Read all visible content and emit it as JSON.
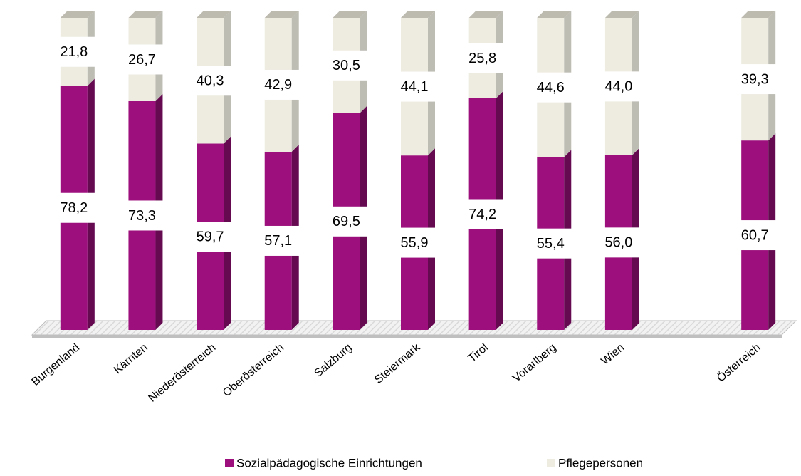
{
  "chart_data": {
    "type": "stacked-bar",
    "categories": [
      "Burgenland",
      "Kärnten",
      "Niederösterreich",
      "Oberösterreich",
      "Salzburg",
      "Steiermark",
      "Tirol",
      "Vorarlberg",
      "Wien",
      null,
      "Österreich"
    ],
    "series": [
      {
        "name": "Sozialpädagogische Einrichtungen",
        "color": "#9c0f7c",
        "values": [
          78.2,
          73.3,
          59.7,
          57.1,
          69.5,
          55.9,
          74.2,
          55.4,
          56.0,
          null,
          60.7
        ],
        "value_labels": [
          "78,2",
          "73,3",
          "59,7",
          "57,1",
          "69,5",
          "55,9",
          "74,2",
          "55,4",
          "56,0",
          null,
          "60,7"
        ]
      },
      {
        "name": "Pflegepersonen",
        "color": "#eeece1",
        "values": [
          21.8,
          26.7,
          40.3,
          42.9,
          30.5,
          44.1,
          25.8,
          44.6,
          44.0,
          null,
          39.3
        ],
        "value_labels": [
          "21,8",
          "26,7",
          "40,3",
          "42,9",
          "30,5",
          "44,1",
          "25,8",
          "44,6",
          "44,0",
          null,
          "39,3"
        ]
      }
    ],
    "legend": "bottom"
  }
}
